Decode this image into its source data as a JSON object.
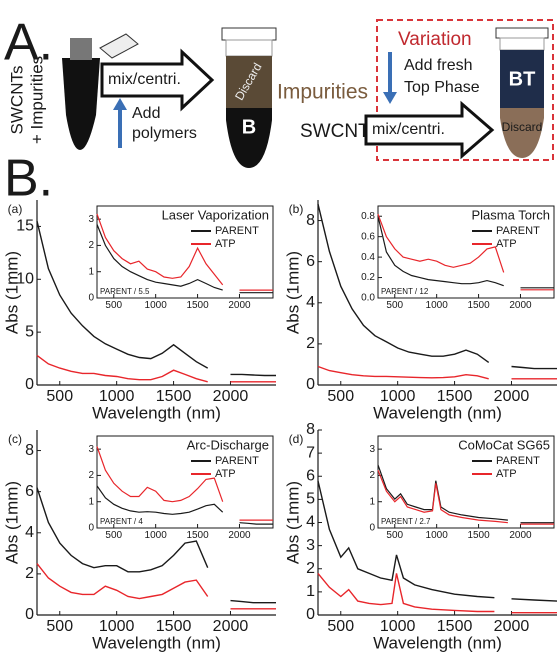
{
  "diagram": {
    "label_a": "A.",
    "sample_top": "SWCNTs",
    "sample_bottom": "+ Impurities",
    "step_1": "mix/centri.",
    "add_1": "Add",
    "add_2": "polymers",
    "tube_discard": "Discard",
    "tube_phase": "B",
    "impurities": "Impurities",
    "swcnts": "SWCNTs",
    "variation": "Variation",
    "fresh_1": "Add fresh",
    "fresh_2": "Top Phase",
    "step_2": "mix/centri.",
    "tube2_phase": "BT",
    "tube2_discard": "Discard",
    "label_b": "B."
  },
  "chart_data": [
    {
      "type": "line",
      "panel": "(a)",
      "x_label": "Wavelength (nm)",
      "y_label": "Abs (1mm)",
      "x": [
        300,
        400,
        500,
        600,
        700,
        800,
        900,
        1000,
        1100,
        1200,
        1300,
        1400,
        1500,
        1600,
        1700,
        1800,
        1900,
        2000,
        2100,
        2200,
        2300,
        2400
      ],
      "xlim": [
        300,
        2400
      ],
      "xticks": [
        500,
        1000,
        1500,
        2000
      ],
      "ylim": [
        0,
        17.5
      ],
      "yticks": [
        0,
        5,
        10,
        15
      ],
      "series": [
        {
          "name": "PARENT",
          "color": "#1a1a1a",
          "values": [
            15.5,
            11,
            8.5,
            6.8,
            5.6,
            4.6,
            3.9,
            3.4,
            2.9,
            2.6,
            2.5,
            3.0,
            3.8,
            3.0,
            2.2,
            1.6,
            null,
            1.0,
            1.0,
            0.95,
            0.9,
            0.9
          ]
        },
        {
          "name": "ATP",
          "color": "#e8262b",
          "values": [
            2.8,
            2.0,
            1.6,
            1.3,
            1.1,
            1.1,
            0.9,
            0.8,
            0.6,
            0.5,
            0.5,
            0.8,
            1.4,
            1.0,
            0.6,
            0.3,
            null,
            0.3,
            0.3,
            0.3,
            0.3,
            0.3
          ]
        }
      ],
      "inset": {
        "type": "line",
        "title": "Laser Vaporization",
        "note": "PARENT / 5.5",
        "xlim": [
          300,
          2400
        ],
        "xticks": [
          500,
          1000,
          1500,
          2000
        ],
        "ylim": [
          0,
          3.5
        ],
        "yticks": [
          0,
          1,
          2,
          3
        ],
        "series": [
          {
            "color": "#1a1a1a",
            "values": [
              2.8,
              2.0,
              1.5,
              1.2,
              1.0,
              0.85,
              0.7,
              0.6,
              0.55,
              0.5,
              0.45,
              0.55,
              0.7,
              0.55,
              0.4,
              0.3,
              null,
              0.2,
              0.2,
              0.2,
              0.2,
              0.2
            ]
          },
          {
            "color": "#e8262b",
            "values": [
              3.2,
              2.3,
              1.8,
              1.5,
              1.3,
              1.4,
              1.1,
              1.0,
              0.8,
              0.75,
              0.8,
              1.2,
              1.9,
              1.3,
              0.9,
              0.5,
              null,
              0.3,
              0.3,
              0.3,
              0.3,
              0.3
            ]
          }
        ]
      }
    },
    {
      "type": "line",
      "panel": "(b)",
      "x_label": "Wavelength (nm)",
      "y_label": "Abs (1mm)",
      "x": [
        300,
        400,
        500,
        600,
        700,
        800,
        900,
        1000,
        1100,
        1200,
        1300,
        1400,
        1500,
        1600,
        1700,
        1800,
        1900,
        2000,
        2100,
        2200,
        2300,
        2400
      ],
      "xlim": [
        300,
        2400
      ],
      "xticks": [
        500,
        1000,
        1500,
        2000
      ],
      "ylim": [
        0,
        9
      ],
      "yticks": [
        0,
        2,
        4,
        6,
        8
      ],
      "series": [
        {
          "name": "PARENT",
          "color": "#1a1a1a",
          "values": [
            8.8,
            6.5,
            4.8,
            3.7,
            2.9,
            2.4,
            2.1,
            1.8,
            1.6,
            1.5,
            1.4,
            1.4,
            1.5,
            1.7,
            1.5,
            1.1,
            null,
            0.9,
            0.85,
            0.8,
            0.8,
            0.8
          ]
        },
        {
          "name": "ATP",
          "color": "#e8262b",
          "values": [
            0.9,
            0.7,
            0.6,
            0.5,
            0.45,
            0.42,
            0.42,
            0.4,
            0.38,
            0.36,
            0.35,
            0.36,
            0.4,
            0.5,
            0.45,
            0.3,
            null,
            0.3,
            0.3,
            0.3,
            0.3,
            0.3
          ]
        }
      ],
      "inset": {
        "type": "line",
        "title": "Plasma Torch",
        "note": "PARENT / 12",
        "xlim": [
          300,
          2400
        ],
        "xticks": [
          500,
          1000,
          1500,
          2000
        ],
        "ylim": [
          0,
          0.9
        ],
        "yticks": [
          {
            "value": 0,
            "label": "0.0"
          },
          0.2,
          0.4,
          0.6,
          0.8
        ],
        "series": [
          {
            "color": "#1a1a1a",
            "values": [
              0.8,
              0.45,
              0.32,
              0.26,
              0.22,
              0.2,
              0.18,
              0.17,
              0.16,
              0.15,
              0.14,
              0.14,
              0.15,
              0.17,
              0.15,
              0.12,
              null,
              0.1,
              0.1,
              0.1,
              0.1,
              0.1
            ]
          },
          {
            "color": "#e8262b",
            "values": [
              0.82,
              0.6,
              0.48,
              0.4,
              0.38,
              0.36,
              0.38,
              0.36,
              0.32,
              0.3,
              0.32,
              0.34,
              0.4,
              0.48,
              0.5,
              0.25,
              null,
              0.08,
              0.08,
              0.08,
              0.08,
              0.08
            ]
          }
        ]
      }
    },
    {
      "type": "line",
      "panel": "(c)",
      "x_label": "Wavelength (nm)",
      "y_label": "Abs (1mm)",
      "x": [
        300,
        400,
        500,
        600,
        700,
        800,
        900,
        1000,
        1100,
        1200,
        1300,
        1400,
        1500,
        1600,
        1700,
        1800,
        1900,
        2000,
        2100,
        2200,
        2300,
        2400
      ],
      "xlim": [
        300,
        2400
      ],
      "xticks": [
        500,
        1000,
        1500,
        2000
      ],
      "ylim": [
        0,
        9
      ],
      "yticks": [
        0,
        2,
        4,
        6,
        8
      ],
      "series": [
        {
          "name": "PARENT",
          "color": "#1a1a1a",
          "values": [
            6.2,
            4.5,
            3.5,
            2.9,
            2.5,
            2.3,
            2.4,
            2.4,
            2.1,
            2.1,
            2.2,
            2.4,
            2.9,
            3.5,
            3.6,
            2.3,
            null,
            0.7,
            0.65,
            0.6,
            0.6,
            0.6
          ]
        },
        {
          "name": "ATP",
          "color": "#e8262b",
          "values": [
            2.5,
            1.8,
            1.4,
            1.1,
            1.0,
            1.0,
            1.4,
            1.2,
            0.9,
            0.8,
            0.9,
            1.0,
            1.3,
            1.6,
            1.7,
            0.9,
            null,
            0.3,
            0.3,
            0.3,
            0.3,
            0.3
          ]
        }
      ],
      "inset": {
        "type": "line",
        "title": "Arc-Discharge",
        "note": "PARENT / 4",
        "xlim": [
          300,
          2400
        ],
        "xticks": [
          500,
          1000,
          1500,
          2000
        ],
        "ylim": [
          0,
          3.5
        ],
        "yticks": [
          0,
          1,
          2,
          3
        ],
        "series": [
          {
            "color": "#1a1a1a",
            "values": [
              1.6,
              1.15,
              0.9,
              0.75,
              0.65,
              0.6,
              0.62,
              0.6,
              0.55,
              0.52,
              0.55,
              0.6,
              0.72,
              0.85,
              0.9,
              0.6,
              null,
              0.2,
              0.18,
              0.15,
              0.15,
              0.15
            ]
          },
          {
            "color": "#e8262b",
            "values": [
              3.1,
              2.2,
              1.7,
              1.4,
              1.2,
              1.2,
              1.55,
              1.4,
              1.05,
              1.0,
              1.05,
              1.2,
              1.5,
              1.85,
              1.9,
              1.0,
              null,
              0.3,
              0.3,
              0.3,
              0.3,
              0.3
            ]
          }
        ]
      }
    },
    {
      "type": "line",
      "panel": "(d)",
      "x_label": "Wavelength (nm)",
      "y_label": "Abs (1mm)",
      "x": [
        300,
        400,
        500,
        570,
        650,
        750,
        850,
        950,
        990,
        1050,
        1150,
        1300,
        1500,
        1700,
        1850,
        1900,
        2000,
        2200,
        2400
      ],
      "xlim": [
        300,
        2400
      ],
      "xticks": [
        500,
        1000,
        1500,
        2000
      ],
      "ylim": [
        0,
        8
      ],
      "yticks": [
        0,
        1,
        2,
        3,
        4,
        5,
        6,
        7,
        8
      ],
      "series": [
        {
          "name": "PARENT",
          "color": "#1a1a1a",
          "values": [
            5.8,
            3.7,
            2.5,
            2.9,
            2.0,
            1.8,
            1.6,
            1.5,
            2.6,
            1.6,
            1.3,
            1.1,
            0.9,
            0.8,
            0.75,
            null,
            0.7,
            0.65,
            0.6
          ]
        },
        {
          "name": "ATP",
          "color": "#e8262b",
          "values": [
            1.8,
            1.2,
            0.8,
            1.1,
            0.6,
            0.5,
            0.45,
            0.5,
            1.8,
            0.5,
            0.35,
            0.25,
            0.2,
            0.15,
            0.15,
            null,
            0.1,
            0.1,
            0.1
          ]
        }
      ],
      "inset": {
        "type": "line",
        "title": "CoMoCat SG65",
        "note": "PARENT / 2.7",
        "xlim": [
          300,
          2400
        ],
        "xticks": [
          500,
          1000,
          1500,
          2000
        ],
        "ylim": [
          0,
          3.5
        ],
        "yticks": [
          0,
          1,
          2,
          3
        ],
        "series": [
          {
            "color": "#1a1a1a",
            "values": [
              2.4,
              1.5,
              1.1,
              1.3,
              0.9,
              0.8,
              0.7,
              0.7,
              1.8,
              0.8,
              0.6,
              0.5,
              0.4,
              0.35,
              0.3,
              null,
              0.2,
              0.2,
              0.2
            ]
          },
          {
            "color": "#e8262b",
            "values": [
              2.2,
              1.4,
              1.0,
              1.2,
              0.8,
              0.7,
              0.6,
              0.65,
              1.7,
              0.7,
              0.5,
              0.4,
              0.3,
              0.25,
              0.2,
              null,
              0.15,
              0.15,
              0.15
            ]
          }
        ]
      }
    }
  ]
}
